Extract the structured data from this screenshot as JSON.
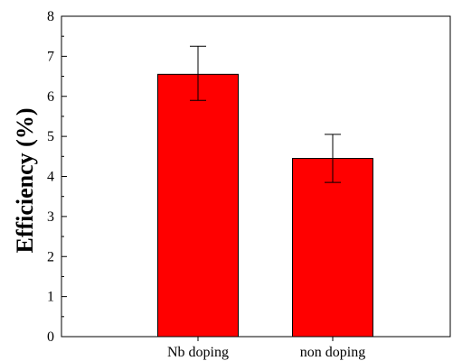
{
  "chart_data": {
    "type": "bar",
    "categories": [
      "Nb doping",
      "non doping"
    ],
    "values": [
      6.55,
      4.45
    ],
    "error_high": [
      7.25,
      5.05
    ],
    "error_low": [
      5.9,
      3.85
    ],
    "ylabel": "Efficiency (%)",
    "xlabel": "",
    "ylim": [
      0,
      8
    ],
    "y_ticks": [
      0,
      1,
      2,
      3,
      4,
      5,
      6,
      7,
      8
    ],
    "grid": false,
    "bar_color": "#ff0000"
  }
}
